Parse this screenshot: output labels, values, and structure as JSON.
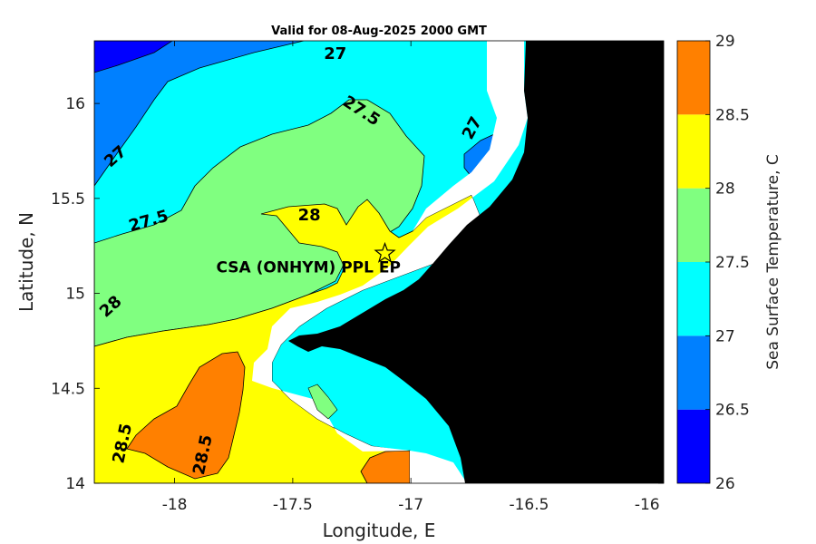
{
  "chart_data": {
    "type": "heatmap",
    "title": "Valid for 08-Aug-2025 2000 GMT",
    "xlabel": "Longitude, E",
    "ylabel": "Latitude, N",
    "xlim": [
      -18.34,
      -15.93
    ],
    "ylim": [
      14.0,
      16.33
    ],
    "xticks": [
      -18,
      -17.5,
      -17,
      -16.5,
      -16
    ],
    "xtick_labels": [
      "-18",
      "-17.5",
      "-17",
      "-16.5",
      "-16"
    ],
    "yticks": [
      14,
      14.5,
      15,
      15.5,
      16
    ],
    "ytick_labels": [
      "14",
      "14.5",
      "15",
      "15.5",
      "16"
    ],
    "colorbar": {
      "label": "Sea Surface Temperature, C",
      "range": [
        26,
        29
      ],
      "ticks": [
        "26",
        "26.5",
        "27",
        "27.5",
        "28",
        "28.5",
        "29"
      ],
      "levels": [
        {
          "from": 26.0,
          "to": 26.5,
          "color": "#0000ff"
        },
        {
          "from": 26.5,
          "to": 27.0,
          "color": "#0080ff"
        },
        {
          "from": 27.0,
          "to": 27.5,
          "color": "#00ffff"
        },
        {
          "from": 27.5,
          "to": 28.0,
          "color": "#80ff80"
        },
        {
          "from": 28.0,
          "to": 28.5,
          "color": "#ffff00"
        },
        {
          "from": 28.5,
          "to": 29.0,
          "color": "#ff8000"
        }
      ]
    },
    "contour_labels": [
      {
        "text": "27",
        "lon": -17.32,
        "lat": 16.26,
        "angle": 0
      },
      {
        "text": "27.5",
        "lon": -17.21,
        "lat": 15.96,
        "angle": 33
      },
      {
        "text": "27",
        "lon": -16.74,
        "lat": 15.87,
        "angle": -62
      },
      {
        "text": "27",
        "lon": -18.25,
        "lat": 15.72,
        "angle": -42
      },
      {
        "text": "27.5",
        "lon": -18.11,
        "lat": 15.38,
        "angle": -16
      },
      {
        "text": "28",
        "lon": -17.43,
        "lat": 15.41,
        "angle": 0
      },
      {
        "text": "28",
        "lon": -18.27,
        "lat": 14.93,
        "angle": -42
      },
      {
        "text": "28.5",
        "lon": -18.22,
        "lat": 14.21,
        "angle": -78
      },
      {
        "text": "28.5",
        "lon": -17.88,
        "lat": 14.15,
        "angle": -78
      }
    ],
    "station": {
      "label": "CSA (ONHYM) PPL EP",
      "lon": -17.11,
      "lat": 15.21
    },
    "land_color": "#000000",
    "nodata_color": "#ffffff",
    "grid": false
  }
}
